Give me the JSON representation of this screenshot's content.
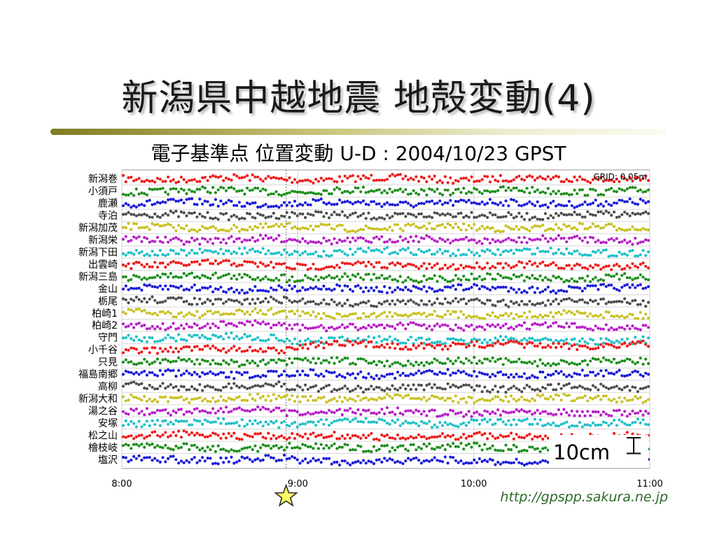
{
  "slide": {
    "title": "新潟県中越地震 地殻変動(4)",
    "url": "http://gpspp.sakura.ne.jp"
  },
  "chart_data": {
    "type": "scatter",
    "title": "電子基準点 位置変動 U-D : 2004/10/23 GPST",
    "grid_note": "GRID: 0.05m",
    "scale_label": "10cm",
    "x_ticks": [
      "8:00",
      "9:00",
      "10:00",
      "11:00"
    ],
    "x_range": [
      "8:00",
      "11:00"
    ],
    "event_time": "8:56",
    "event_marker": "star",
    "grid": true,
    "series": [
      {
        "name": "新潟巻",
        "color": "#ee1c1c",
        "offset_m": 0.0
      },
      {
        "name": "小須戸",
        "color": "#1c8f1c",
        "offset_m": 0.0
      },
      {
        "name": "鹿瀬",
        "color": "#1a1ad8",
        "offset_m": 0.0
      },
      {
        "name": "寺泊",
        "color": "#4d4d4d",
        "offset_m": 0.0
      },
      {
        "name": "新潟加茂",
        "color": "#c8c020",
        "offset_m": 0.0
      },
      {
        "name": "新潟栄",
        "color": "#b81ec8",
        "offset_m": 0.0
      },
      {
        "name": "新潟下田",
        "color": "#1ec0c8",
        "offset_m": 0.0
      },
      {
        "name": "出雲崎",
        "color": "#ee1c1c",
        "offset_m": -0.01
      },
      {
        "name": "新潟三島",
        "color": "#1c8f1c",
        "offset_m": -0.01
      },
      {
        "name": "金山",
        "color": "#1a1ad8",
        "offset_m": 0.0
      },
      {
        "name": "栃尾",
        "color": "#4d4d4d",
        "offset_m": -0.01
      },
      {
        "name": "柏崎1",
        "color": "#c8c020",
        "offset_m": -0.01
      },
      {
        "name": "柏崎2",
        "color": "#b81ec8",
        "offset_m": -0.01
      },
      {
        "name": "守門",
        "color": "#1ec0c8",
        "offset_m": -0.02
      },
      {
        "name": "小千谷",
        "color": "#ee1c1c",
        "offset_m": 0.03
      },
      {
        "name": "只見",
        "color": "#1c8f1c",
        "offset_m": 0.0
      },
      {
        "name": "福島南郷",
        "color": "#1a1ad8",
        "offset_m": 0.0
      },
      {
        "name": "高柳",
        "color": "#4d4d4d",
        "offset_m": -0.01
      },
      {
        "name": "新潟大和",
        "color": "#c8c020",
        "offset_m": 0.0
      },
      {
        "name": "湯之谷",
        "color": "#b81ec8",
        "offset_m": -0.01
      },
      {
        "name": "安塚",
        "color": "#1ec0c8",
        "offset_m": 0.0
      },
      {
        "name": "松之山",
        "color": "#ee1c1c",
        "offset_m": -0.01
      },
      {
        "name": "檜枝岐",
        "color": "#1c8f1c",
        "offset_m": 0.0
      },
      {
        "name": "塩沢",
        "color": "#1a1ad8",
        "offset_m": -0.01
      }
    ]
  }
}
